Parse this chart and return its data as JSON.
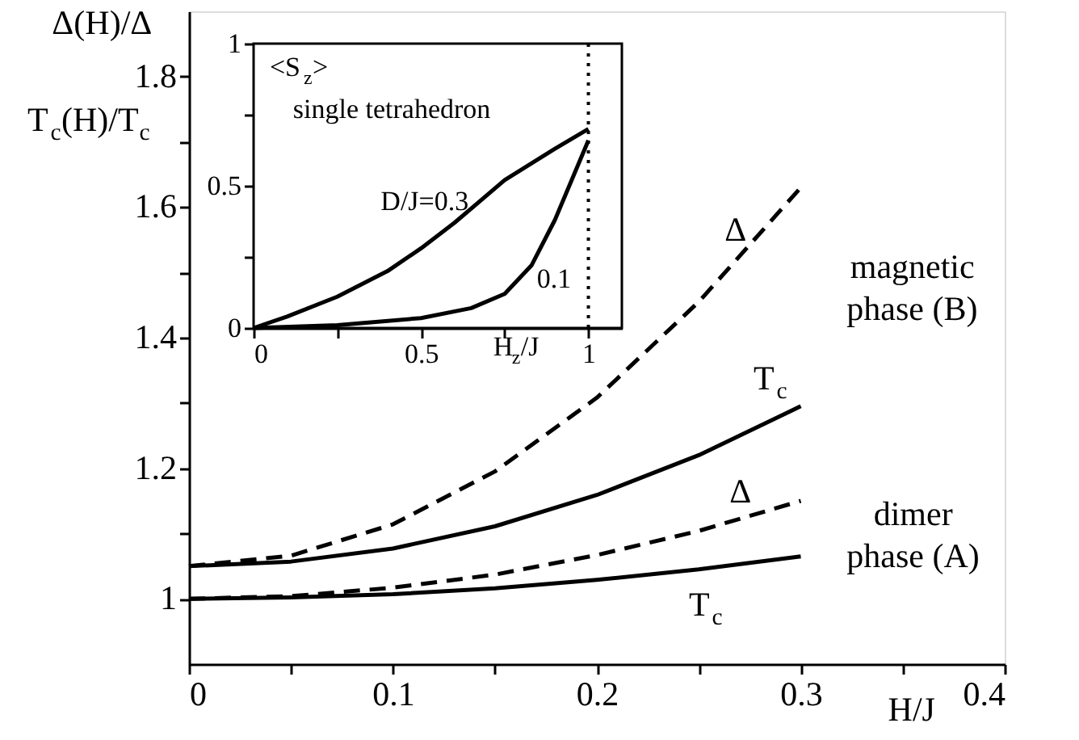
{
  "chart_data": [
    {
      "type": "line",
      "xlabel": "H/J",
      "ylabel": "Δ(H)/Δ\nT$_{c}$(H)/T$_{c}$",
      "x": [
        0,
        0.05,
        0.1,
        0.15,
        0.2,
        0.25,
        0.3
      ],
      "series": [
        {
          "color": "#000000",
          "line_style": "dashed",
          "values": [
            1.05,
            1.066,
            1.114,
            1.195,
            1.308,
            1.455,
            1.63
          ]
        },
        {
          "color": "#000000",
          "line_style": "solid",
          "values": [
            1.05,
            1.057,
            1.077,
            1.111,
            1.159,
            1.22,
            1.295
          ]
        },
        {
          "color": "#000000",
          "line_style": "dashed",
          "values": [
            1.0,
            1.004,
            1.017,
            1.037,
            1.067,
            1.104,
            1.15
          ]
        },
        {
          "color": "#000000",
          "line_style": "solid",
          "values": [
            1.0,
            1.002,
            1.007,
            1.016,
            1.029,
            1.045,
            1.065
          ]
        }
      ],
      "xlim": [
        0,
        0.4
      ],
      "ylim": [
        0.9,
        1.9
      ],
      "xticks": [
        0,
        {
          "value": 0.05,
          "label": null
        },
        0.1,
        {
          "value": 0.15,
          "label": null
        },
        0.2,
        {
          "value": 0.25,
          "label": null
        },
        0.3,
        {
          "value": 0.35,
          "label": null
        },
        0.4
      ],
      "yticks": [
        1,
        {
          "value": 1.1,
          "label": null
        },
        1.2,
        {
          "value": 1.3,
          "label": null
        },
        1.4,
        {
          "value": 1.5,
          "label": null
        },
        1.6,
        {
          "value": 1.7,
          "label": null
        },
        1.8
      ],
      "annotations": [
        "Δ",
        "T$_{c}$",
        "Δ",
        "T$_{c}$",
        "magnetic\nphase (B)",
        "dimer\nphase (A)"
      ]
    },
    {
      "type": "line",
      "title": "single tetrahedron",
      "xlabel": "H$_{z}$/J",
      "ylabel": "<S$_{z}$>",
      "series": [
        {
          "color": "#000000",
          "line_style": "solid",
          "x": [
            0,
            0.1,
            0.25,
            0.4,
            0.5,
            0.6,
            0.75,
            0.9,
            1
          ],
          "values": [
            0,
            0.04,
            0.11,
            0.2,
            0.28,
            0.37,
            0.52,
            0.63,
            0.7
          ]
        },
        {
          "color": "#000000",
          "line_style": "solid",
          "x": [
            0,
            0.25,
            0.5,
            0.65,
            0.75,
            0.83,
            0.9,
            0.95,
            1
          ],
          "values": [
            0,
            0.01,
            0.035,
            0.07,
            0.12,
            0.22,
            0.38,
            0.52,
            0.66
          ]
        }
      ],
      "xlim": [
        0,
        1.1
      ],
      "ylim": [
        0,
        1
      ],
      "xticks": [
        0,
        {
          "value": 0.25,
          "label": null
        },
        0.5,
        {
          "value": 0.75,
          "label": null
        },
        1
      ],
      "yticks": [
        0,
        {
          "value": 0.25,
          "label": null
        },
        0.5,
        {
          "value": 0.75,
          "label": null
        },
        1
      ],
      "ref_lines": [
        {
          "axis": "x",
          "value": 1,
          "line_style": "dotted",
          "color": "#000000"
        }
      ],
      "annotations": [
        "D/J=0.3",
        "0.1"
      ]
    }
  ]
}
